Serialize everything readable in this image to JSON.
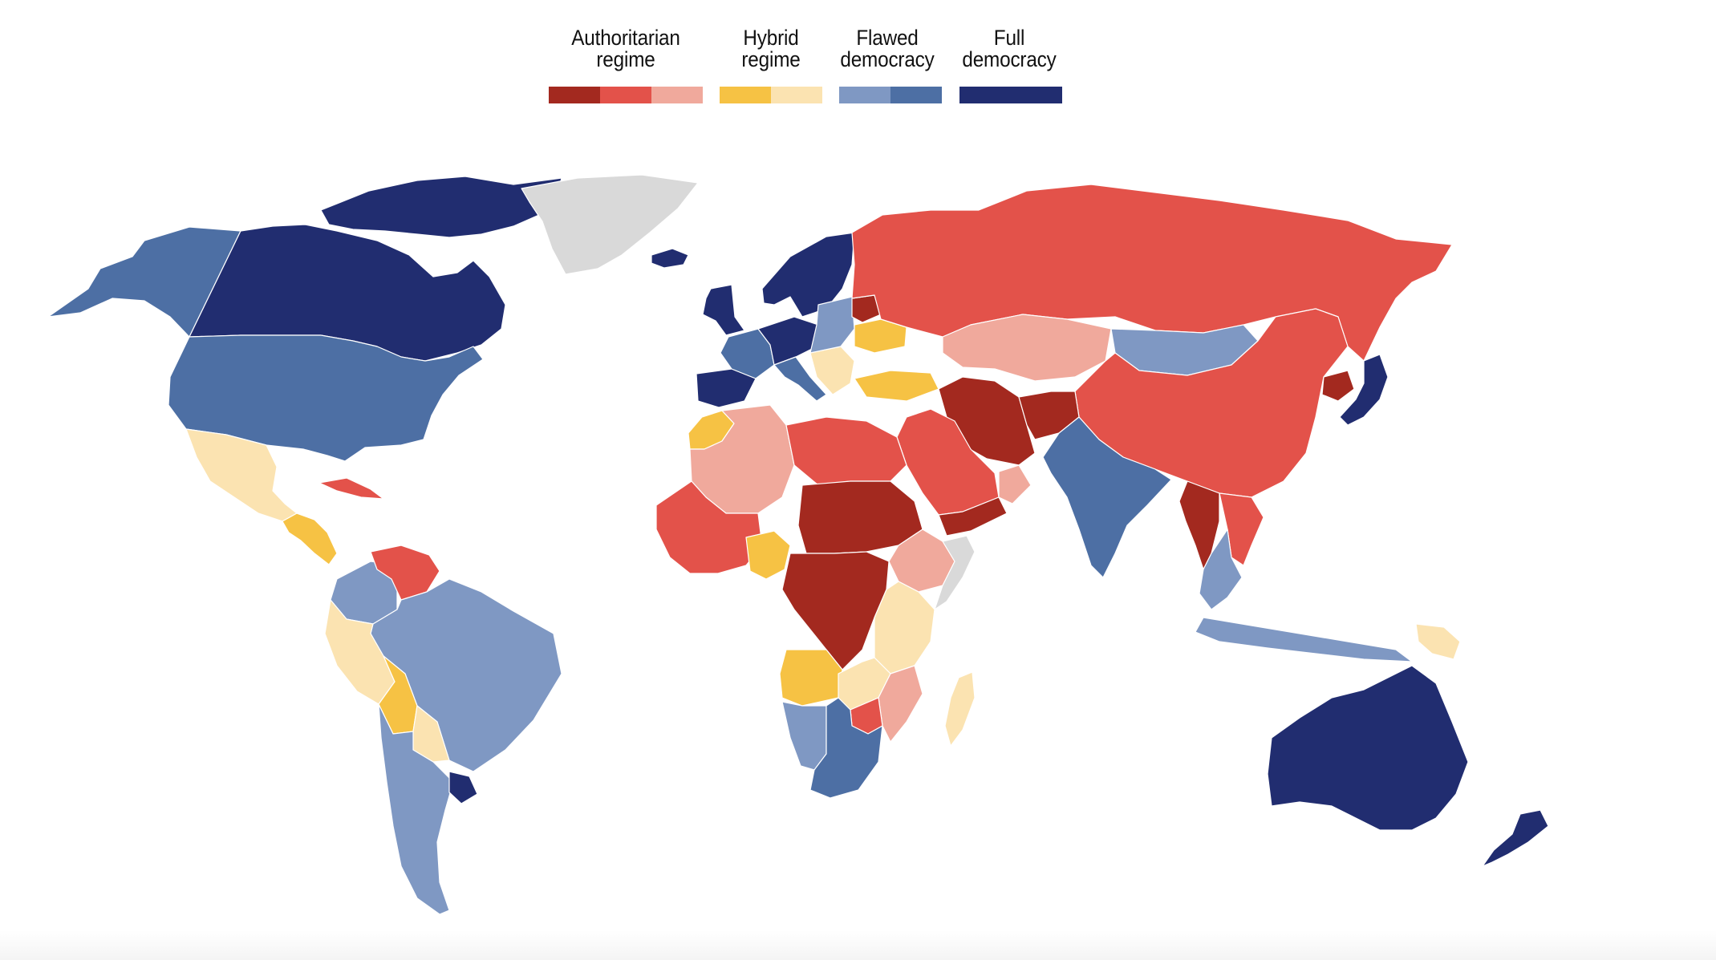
{
  "legend": {
    "groups": [
      {
        "line1": "Authoritarian",
        "line2": "regime",
        "colors": [
          "#a3291f",
          "#e3524a",
          "#f0a99c"
        ]
      },
      {
        "line1": "Hybrid",
        "line2": "regime",
        "colors": [
          "#f6c244",
          "#fbe3b1"
        ]
      },
      {
        "line1": "Flawed",
        "line2": "democracy",
        "colors": [
          "#7f98c3",
          "#4d6fa4"
        ]
      },
      {
        "line1": "Full",
        "line2": "democracy",
        "colors": [
          "#212d70"
        ]
      }
    ]
  },
  "colors": {
    "full_democracy": "#212d70",
    "flawed_dark": "#4d6fa4",
    "flawed_light": "#7f98c3",
    "hybrid_dark": "#f6c244",
    "hybrid_light": "#fbe3b1",
    "auth_dark": "#a3291f",
    "auth_mid": "#e3524a",
    "auth_light": "#f0a99c",
    "no_data": "#d9d9d9"
  },
  "regions": [
    {
      "name": "alaska",
      "category": "flawed_dark"
    },
    {
      "name": "canada",
      "category": "full_democracy"
    },
    {
      "name": "canada-arctic-islands",
      "category": "full_democracy"
    },
    {
      "name": "greenland",
      "category": "no_data"
    },
    {
      "name": "iceland",
      "category": "full_democracy"
    },
    {
      "name": "united-states",
      "category": "flawed_dark"
    },
    {
      "name": "mexico",
      "category": "hybrid_light"
    },
    {
      "name": "central-america",
      "category": "hybrid_dark"
    },
    {
      "name": "cuba",
      "category": "auth_mid"
    },
    {
      "name": "venezuela",
      "category": "auth_mid"
    },
    {
      "name": "colombia",
      "category": "flawed_light"
    },
    {
      "name": "brazil",
      "category": "flawed_light"
    },
    {
      "name": "peru",
      "category": "hybrid_light"
    },
    {
      "name": "bolivia",
      "category": "hybrid_dark"
    },
    {
      "name": "paraguay",
      "category": "hybrid_light"
    },
    {
      "name": "argentina-chile",
      "category": "flawed_light"
    },
    {
      "name": "uruguay",
      "category": "full_democracy"
    },
    {
      "name": "scandinavia",
      "category": "full_democracy"
    },
    {
      "name": "uk-ireland",
      "category": "full_democracy"
    },
    {
      "name": "western-europe",
      "category": "flawed_dark"
    },
    {
      "name": "central-europe",
      "category": "full_democracy"
    },
    {
      "name": "iberia",
      "category": "full_democracy"
    },
    {
      "name": "italy",
      "category": "flawed_dark"
    },
    {
      "name": "balkans",
      "category": "hybrid_light"
    },
    {
      "name": "eastern-europe",
      "category": "flawed_light"
    },
    {
      "name": "belarus",
      "category": "auth_dark"
    },
    {
      "name": "ukraine",
      "category": "hybrid_dark"
    },
    {
      "name": "turkey",
      "category": "hybrid_dark"
    },
    {
      "name": "russia",
      "category": "auth_mid"
    },
    {
      "name": "kazakhstan",
      "category": "auth_light"
    },
    {
      "name": "mongolia",
      "category": "flawed_light"
    },
    {
      "name": "china",
      "category": "auth_mid"
    },
    {
      "name": "north-korea",
      "category": "auth_dark"
    },
    {
      "name": "japan",
      "category": "full_democracy"
    },
    {
      "name": "iran",
      "category": "auth_dark"
    },
    {
      "name": "afghanistan",
      "category": "auth_dark"
    },
    {
      "name": "saudi-arabia",
      "category": "auth_mid"
    },
    {
      "name": "yemen",
      "category": "auth_dark"
    },
    {
      "name": "oman",
      "category": "auth_light"
    },
    {
      "name": "india",
      "category": "flawed_dark"
    },
    {
      "name": "myanmar",
      "category": "auth_dark"
    },
    {
      "name": "southeast-asia",
      "category": "flawed_light"
    },
    {
      "name": "vietnam-laos",
      "category": "auth_mid"
    },
    {
      "name": "indonesia",
      "category": "flawed_light"
    },
    {
      "name": "papua-new-guinea",
      "category": "hybrid_light"
    },
    {
      "name": "australia",
      "category": "full_democracy"
    },
    {
      "name": "new-zealand",
      "category": "full_democracy"
    },
    {
      "name": "morocco",
      "category": "hybrid_dark"
    },
    {
      "name": "algeria-mali",
      "category": "auth_light"
    },
    {
      "name": "libya-egypt",
      "category": "auth_mid"
    },
    {
      "name": "west-africa",
      "category": "auth_mid"
    },
    {
      "name": "nigeria",
      "category": "hybrid_dark"
    },
    {
      "name": "chad-sudan",
      "category": "auth_dark"
    },
    {
      "name": "ethiopia",
      "category": "auth_light"
    },
    {
      "name": "somalia",
      "category": "no_data"
    },
    {
      "name": "central-africa",
      "category": "auth_dark"
    },
    {
      "name": "east-africa",
      "category": "hybrid_light"
    },
    {
      "name": "angola",
      "category": "hybrid_dark"
    },
    {
      "name": "zambia",
      "category": "hybrid_light"
    },
    {
      "name": "mozambique",
      "category": "auth_light"
    },
    {
      "name": "zimbabwe",
      "category": "auth_mid"
    },
    {
      "name": "namibia",
      "category": "flawed_light"
    },
    {
      "name": "botswana-south-africa",
      "category": "flawed_dark"
    },
    {
      "name": "madagascar",
      "category": "hybrid_light"
    }
  ]
}
